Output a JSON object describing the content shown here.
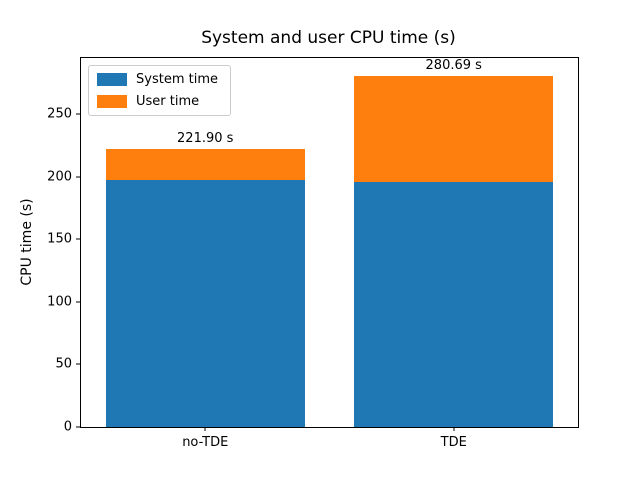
{
  "chart_data": {
    "type": "bar",
    "stacked": true,
    "title": "System and user CPU time (s)",
    "xlabel": "",
    "ylabel": "CPU time (s)",
    "categories": [
      "no-TDE",
      "TDE"
    ],
    "series": [
      {
        "name": "System time",
        "color": "#1f77b4",
        "values": [
          197.5,
          196.0
        ]
      },
      {
        "name": "User time",
        "color": "#ff7f0e",
        "values": [
          24.4,
          84.69
        ]
      }
    ],
    "totals": [
      221.9,
      280.69
    ],
    "total_labels": [
      "221.90 s",
      "280.69 s"
    ],
    "yticks": [
      0,
      50,
      100,
      150,
      200,
      250
    ],
    "ylim": [
      0,
      295
    ],
    "grid": false,
    "legend_position": "upper left",
    "axis_color": "#000000",
    "background_color": "#ffffff",
    "legend_border_color": "#cccccc"
  }
}
